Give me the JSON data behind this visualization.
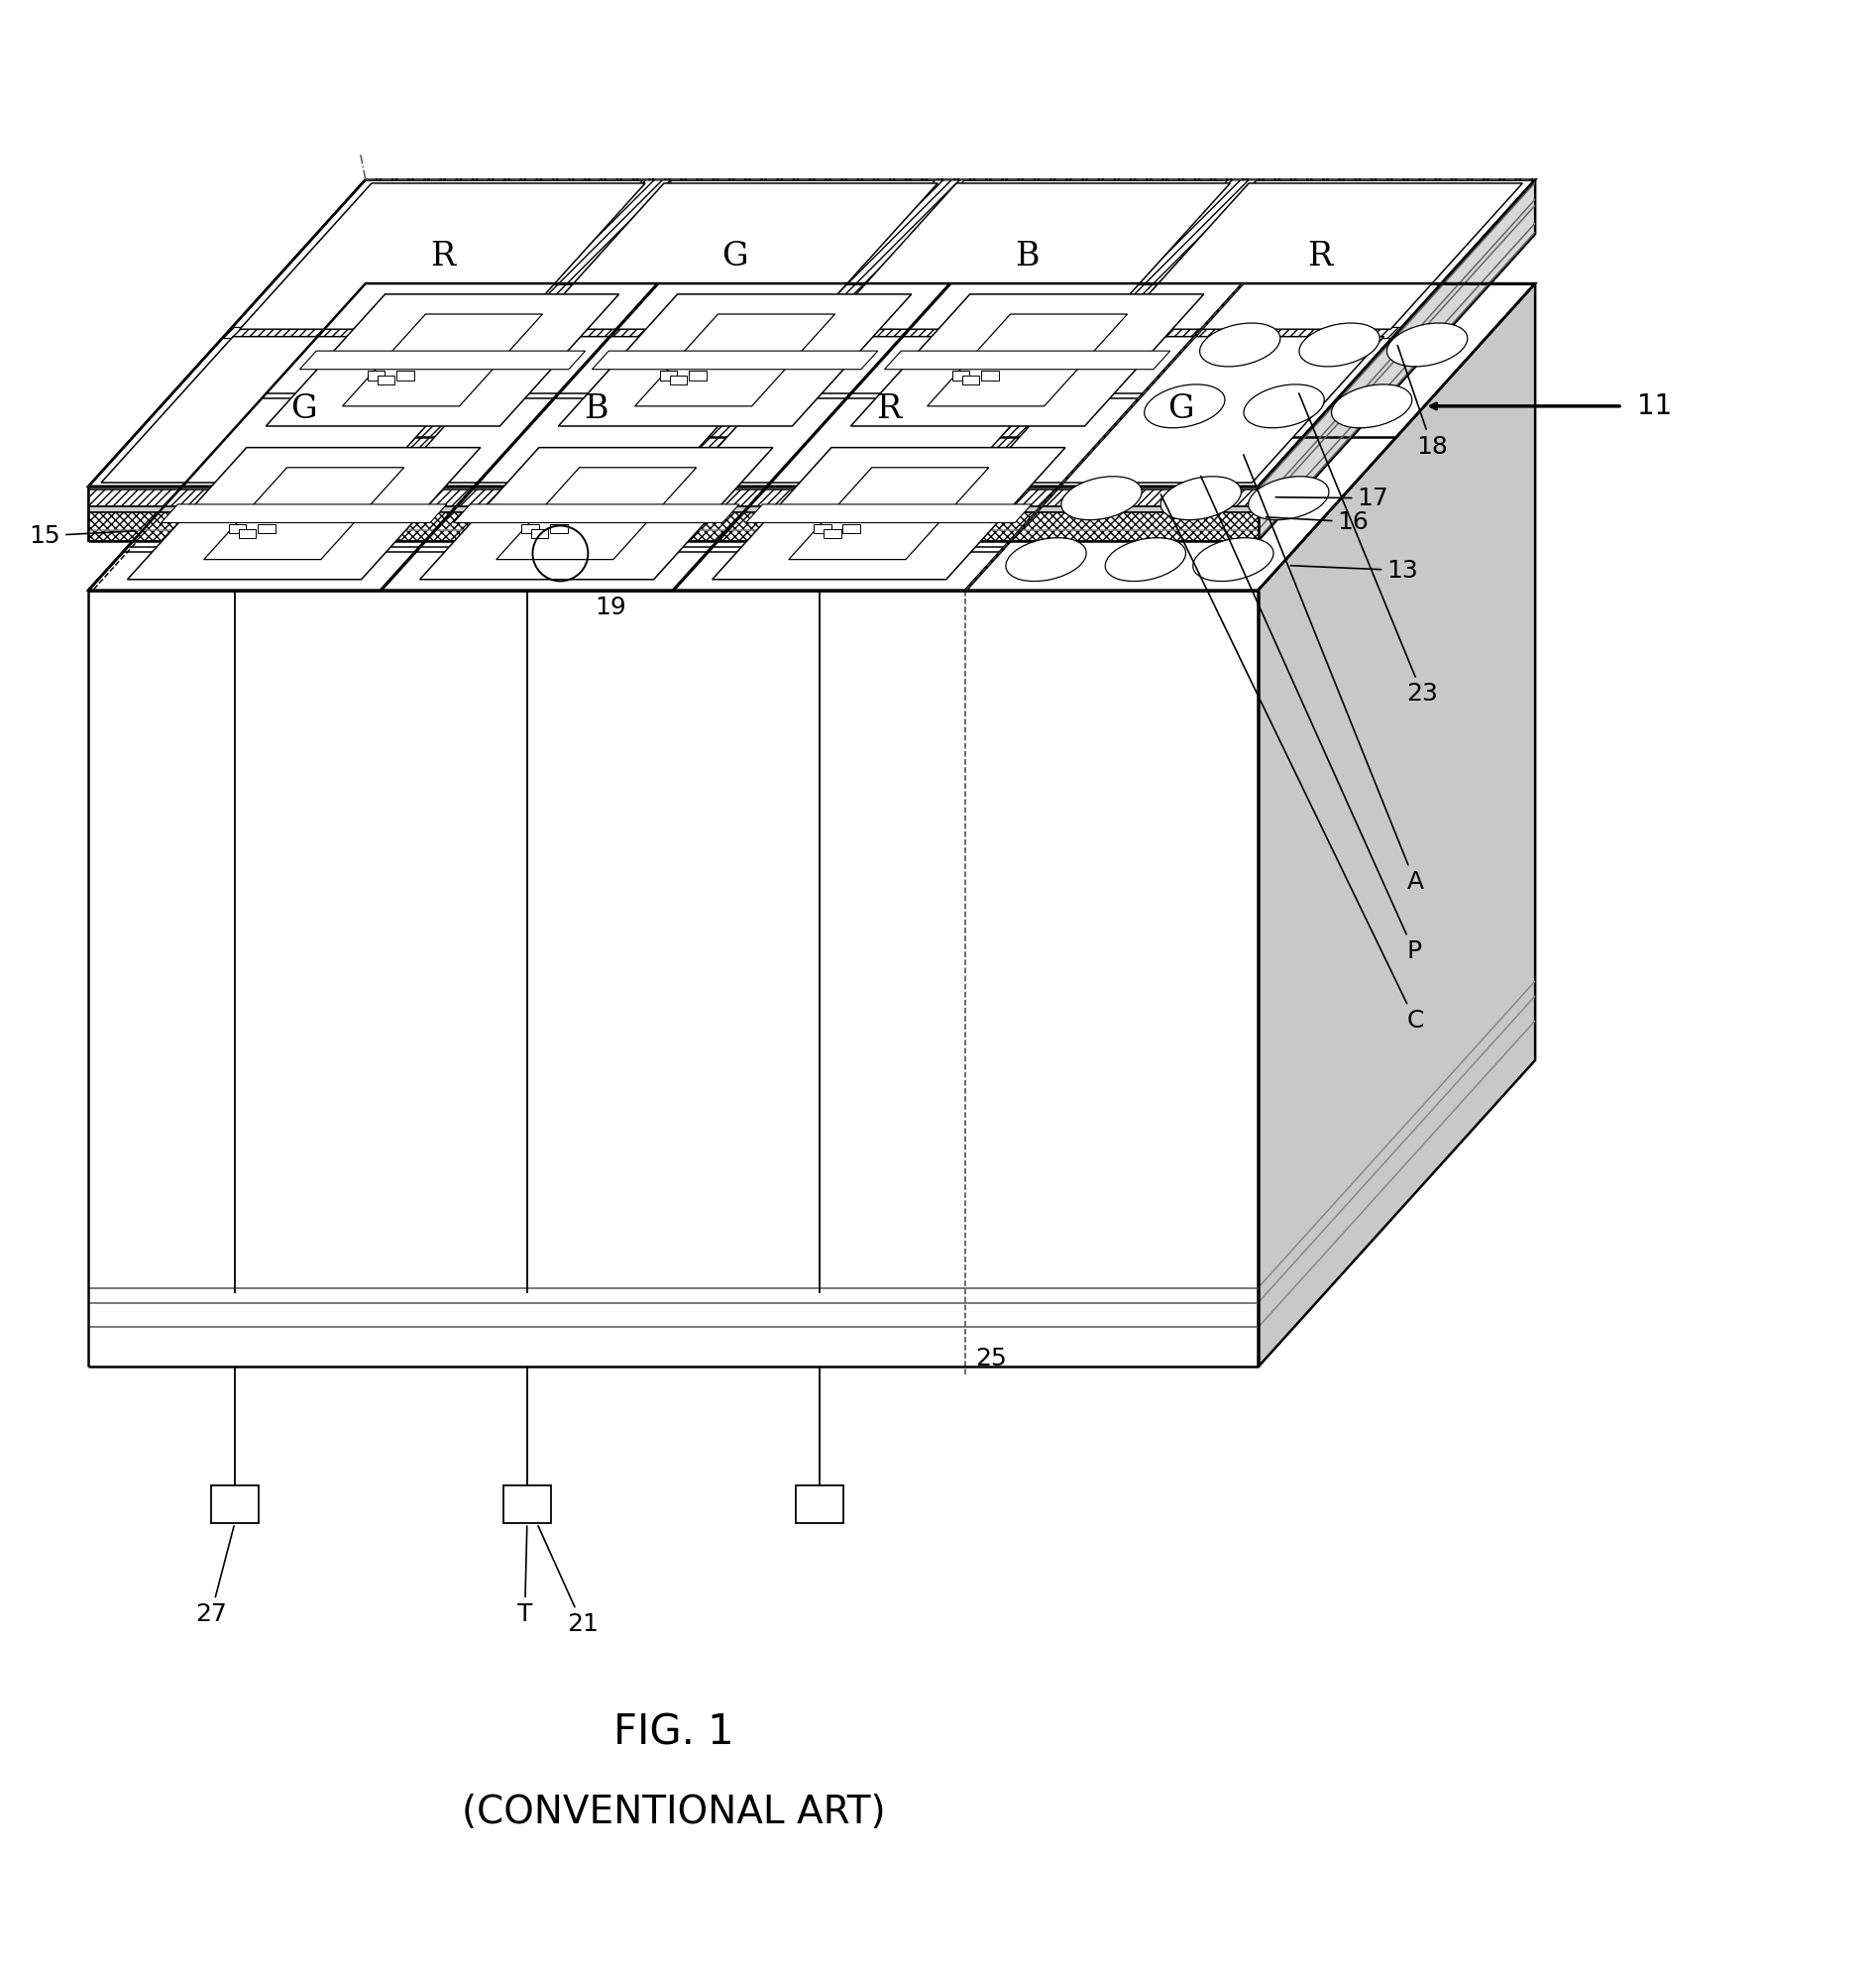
{
  "title": "FIG. 1",
  "subtitle": "(CONVENTIONAL ART)",
  "bg_color": "#ffffff",
  "line_color": "#000000",
  "labels_top_row1": [
    "G",
    "B",
    "R",
    "G"
  ],
  "labels_top_row2": [
    "R",
    "G",
    "B",
    "R"
  ],
  "ref_fontsize": 18,
  "label_fontsize": 24,
  "title_fontsize": 30,
  "subtitle_fontsize": 28,
  "lw_main": 1.8,
  "lw_thin": 1.1,
  "lw_thick": 2.5
}
